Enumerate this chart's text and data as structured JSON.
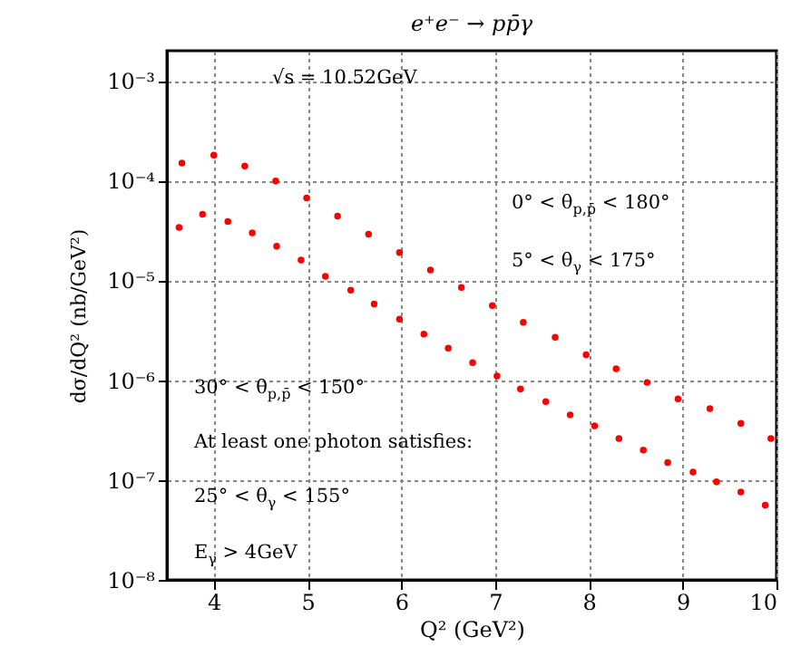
{
  "chart_data": {
    "type": "scatter",
    "title": "e⁺e⁻ → pp̄γ",
    "xlabel": "Q² (GeV²)",
    "ylabel": "dσ/dQ² (nb/GeV²)",
    "log": "y",
    "grid": true,
    "marker": "circle",
    "xlim": [
      3.5,
      10
    ],
    "xticks": [
      4,
      5,
      6,
      7,
      8,
      9,
      10
    ],
    "ylim": [
      1e-08,
      0.002
    ],
    "yticks": [
      {
        "value": 1e-08,
        "label": "10⁻⁸"
      },
      {
        "value": 1e-07,
        "label": "10⁻⁷"
      },
      {
        "value": 1e-06,
        "label": "10⁻⁶"
      },
      {
        "value": 1e-05,
        "label": "10⁻⁵"
      },
      {
        "value": 0.0001,
        "label": "10⁻⁴"
      },
      {
        "value": 0.001,
        "label": "10⁻³"
      }
    ],
    "annotations": [
      "√s = 10.52GeV",
      "0° < θ$_{p,p̄}$ < 180°",
      "5° < θ$_{γ}$ < 175°",
      "30° < θ$_{p,p̄}$ < 150°",
      "At least one photon satisfies:",
      "25° < θ$_{γ}$ < 155°",
      "E$_{γ}$ > 4GeV"
    ],
    "series": [
      {
        "color": "#ff0000",
        "x": [
          3.66,
          4.0,
          4.33,
          4.66,
          4.99,
          5.32,
          5.65,
          5.98,
          6.31,
          6.64,
          6.97,
          7.3,
          7.64,
          7.97,
          8.29,
          8.62,
          8.95,
          9.29,
          9.62,
          9.94
        ],
        "values": [
          0.00015,
          0.00018,
          0.00014,
          9.9e-05,
          6.7e-05,
          4.4e-05,
          2.9e-05,
          1.9e-05,
          1.27e-05,
          8.5e-06,
          5.6e-06,
          3.8e-06,
          2.7e-06,
          1.8e-06,
          1.3e-06,
          9.5e-07,
          6.5e-07,
          5.2e-07,
          3.7e-07,
          2.6e-07
        ]
      },
      {
        "color": "#ff0000",
        "x": [
          3.63,
          3.88,
          4.15,
          4.41,
          4.67,
          4.93,
          5.19,
          5.46,
          5.71,
          5.98,
          6.24,
          6.5,
          6.76,
          7.02,
          7.27,
          7.54,
          7.8,
          8.06,
          8.32,
          8.58,
          8.84,
          9.11,
          9.36,
          9.62,
          9.88
        ],
        "values": [
          3.4e-05,
          4.6e-05,
          3.9e-05,
          3e-05,
          2.2e-05,
          1.6e-05,
          1.1e-05,
          8e-06,
          5.8e-06,
          4.1e-06,
          2.9e-06,
          2.1e-06,
          1.5e-06,
          1.1e-06,
          8.2e-07,
          6.1e-07,
          4.5e-07,
          3.5e-07,
          2.6e-07,
          2e-07,
          1.5e-07,
          1.2e-07,
          9.6e-08,
          7.6e-08,
          5.6e-08
        ]
      }
    ]
  }
}
